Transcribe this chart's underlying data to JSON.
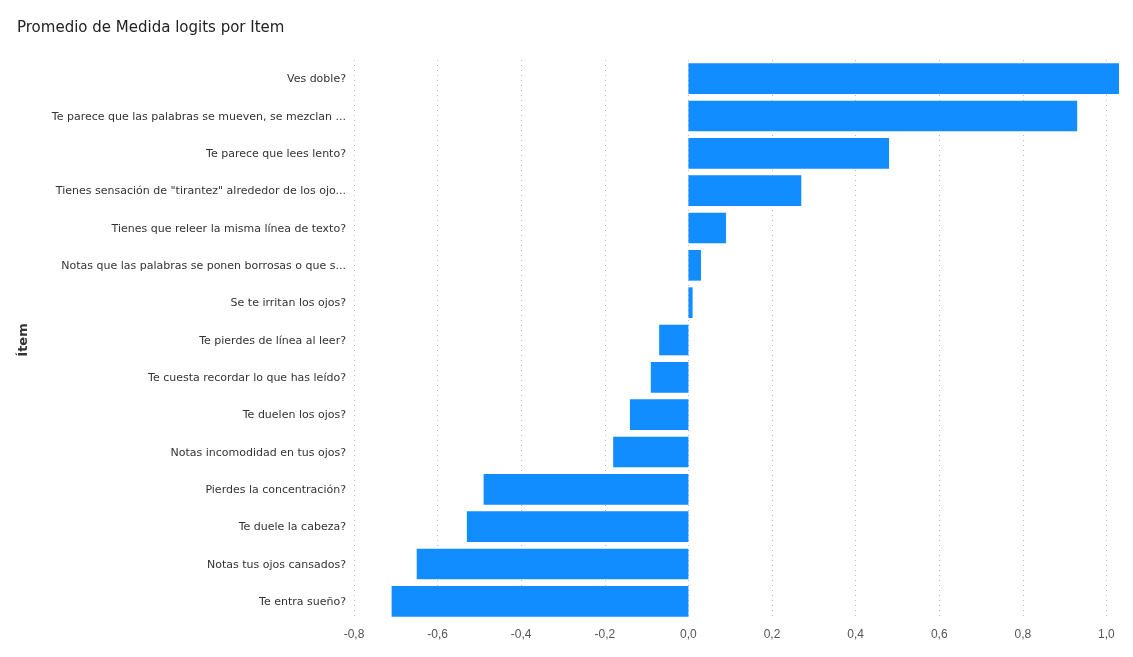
{
  "chart_data": {
    "type": "bar",
    "orientation": "horizontal",
    "title": "Promedio de Medida logits por Item",
    "ylabel": "Ítem",
    "categories": [
      "Ves doble?",
      "Te parece que las palabras se mueven, se mezclan ...",
      "Te parece que lees lento?",
      "Tienes sensación de \"tirantez\" alrededor de los ojo...",
      "Tienes que releer la misma línea de texto?",
      "Notas que las palabras se ponen borrosas o que s...",
      "Se te irritan los ojos?",
      "Te pierdes de línea al leer?",
      "Te cuesta recordar lo que has leído?",
      "Te duelen los ojos?",
      "Notas incomodidad en tus ojos?",
      "Pierdes la concentración?",
      "Te duele la cabeza?",
      "Notas tus ojos cansados?",
      "Te entra sueño?"
    ],
    "values": [
      1.03,
      0.93,
      0.48,
      0.27,
      0.09,
      0.03,
      0.01,
      -0.07,
      -0.09,
      -0.14,
      -0.18,
      -0.49,
      -0.53,
      -0.65,
      -0.71
    ],
    "color": "#118dff",
    "xlim": [
      -0.8,
      1.03
    ],
    "xticks": [
      {
        "value": -0.8,
        "label": "-0,8"
      },
      {
        "value": -0.6,
        "label": "-0,6"
      },
      {
        "value": -0.4,
        "label": "-0,4"
      },
      {
        "value": -0.2,
        "label": "-0,2"
      },
      {
        "value": 0,
        "label": "0,0"
      },
      {
        "value": 0.2,
        "label": "0,2"
      },
      {
        "value": 0.4,
        "label": "0,4"
      },
      {
        "value": 0.6,
        "label": "0,6"
      },
      {
        "value": 0.8,
        "label": "0,8"
      },
      {
        "value": 1.0,
        "label": "1,0"
      }
    ],
    "grid": "x"
  }
}
